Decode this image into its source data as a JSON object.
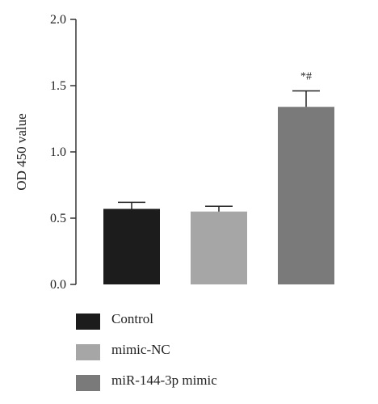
{
  "chart_data": {
    "type": "bar",
    "title": "",
    "xlabel": "",
    "ylabel": "OD 450 value",
    "ylim": [
      0,
      2.0
    ],
    "yticks": [
      "0.0",
      "0.5",
      "1.0",
      "1.5",
      "2.0"
    ],
    "categories": [
      "Control",
      "mimic-NC",
      "miR-144-3p mimic"
    ],
    "values": [
      0.57,
      0.55,
      1.34
    ],
    "errors": [
      0.05,
      0.04,
      0.12
    ],
    "colors": [
      "#1c1c1c",
      "#a6a6a6",
      "#7a7a7a"
    ],
    "annotations": [
      {
        "category": "miR-144-3p mimic",
        "text": "*#"
      }
    ],
    "grid": false,
    "legend_position": "bottom-left"
  }
}
